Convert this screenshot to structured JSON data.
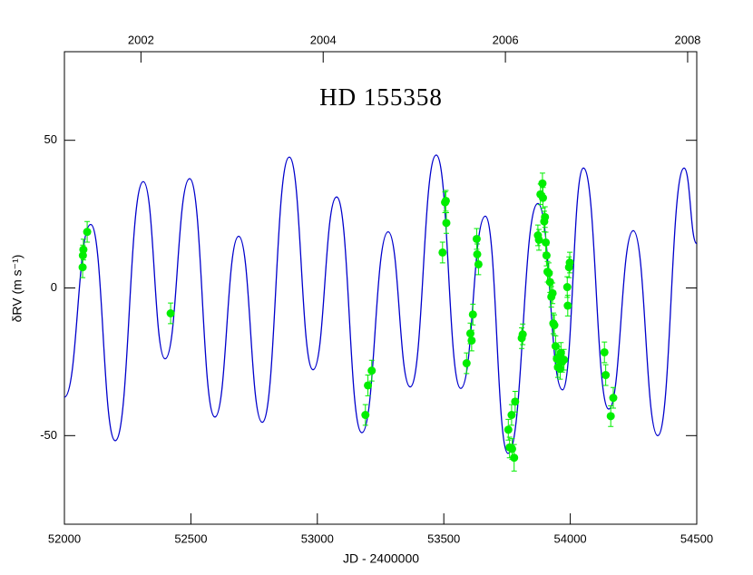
{
  "chart_data": {
    "type": "line",
    "title": "HD 155358",
    "xlabel": "JD - 2400000",
    "ylabel": "δRV (m s⁻¹)",
    "xlim": [
      52000,
      54500
    ],
    "xticks": [
      52000,
      52500,
      53000,
      53500,
      54000,
      54500
    ],
    "x2lim": [
      2001.16,
      2008.1
    ],
    "x2ticks": [
      2002,
      2004,
      2006,
      2008
    ],
    "ylim": [
      -80,
      80
    ],
    "yticks": [
      -50,
      0,
      50
    ],
    "series": [
      {
        "type": "line",
        "color": "#0000cc",
        "x": [
          52000,
          52104,
          52201,
          52312,
          52398,
          52495,
          52595,
          52689,
          52782,
          52889,
          52983,
          53076,
          53176,
          53280,
          53367,
          53470,
          53567,
          53664,
          53754,
          53872,
          53969,
          54052,
          54152,
          54249,
          54346,
          54450,
          54500
        ],
        "y": [
          -37,
          21.5,
          -51.7,
          36,
          -24,
          37,
          -43.7,
          17.5,
          -45.5,
          44.3,
          -27.7,
          30.8,
          -49,
          19,
          -33.5,
          45,
          -34,
          24.3,
          -56,
          28.6,
          -34.5,
          40.6,
          -41,
          19.4,
          -50,
          40.6,
          15
        ]
      },
      {
        "type": "scatter",
        "color": "#00ee00",
        "x": [
          52072,
          52073,
          52075,
          52090,
          52420,
          53190,
          53200,
          53215,
          53495,
          53505,
          53508,
          53510,
          53590,
          53605,
          53610,
          53615,
          53630,
          53632,
          53637,
          53755,
          53760,
          53768,
          53770,
          53778,
          53782,
          53808,
          53812,
          53872,
          53876,
          53882,
          53890,
          53892,
          53897,
          53900,
          53903,
          53906,
          53910,
          53915,
          53920,
          53925,
          53930,
          53933,
          53937,
          53942,
          53947,
          53951,
          53955,
          53960,
          53963,
          53968,
          53975,
          53988,
          53990,
          53995,
          53998,
          54135,
          54140,
          54160,
          54170
        ],
        "y": [
          7,
          11,
          13,
          19,
          -8.6,
          -43,
          -33,
          -28,
          12,
          29,
          29.5,
          22,
          -25.5,
          -15.4,
          -17.8,
          -9,
          16.6,
          11.4,
          8,
          -48,
          -54,
          -43,
          -54.5,
          -57.5,
          -38.5,
          -17,
          -15.7,
          17.8,
          16.3,
          31.7,
          35.4,
          30.5,
          22.5,
          24,
          15.4,
          11,
          5.5,
          5,
          2,
          -3,
          -1.8,
          -12,
          -12.6,
          -19.7,
          -24,
          -26.8,
          -23.4,
          -27.4,
          -22,
          -25,
          -24.3,
          0.3,
          -6,
          7,
          8.6,
          -21.8,
          -29.5,
          -43.4,
          -37.2
        ],
        "errors": [
          3.5,
          3.5,
          3.5,
          3.5,
          3.5,
          3.5,
          3.5,
          3.5,
          3.5,
          3.5,
          3.5,
          3.5,
          3.5,
          3.5,
          3.5,
          3.5,
          3.5,
          3.5,
          3.5,
          3.5,
          3.5,
          3.5,
          3.5,
          4.5,
          3.5,
          3.5,
          3.5,
          3.5,
          3.5,
          3.5,
          3.5,
          3.5,
          3.5,
          3.5,
          3.5,
          3.5,
          3.5,
          3.5,
          3.5,
          3.5,
          3.5,
          3.5,
          3.5,
          3.5,
          3.5,
          3.5,
          3.5,
          3.5,
          3.5,
          3.5,
          3.5,
          3.5,
          3.5,
          3.5,
          3.5,
          3.5,
          3.5,
          3.5,
          3.5
        ]
      }
    ]
  }
}
